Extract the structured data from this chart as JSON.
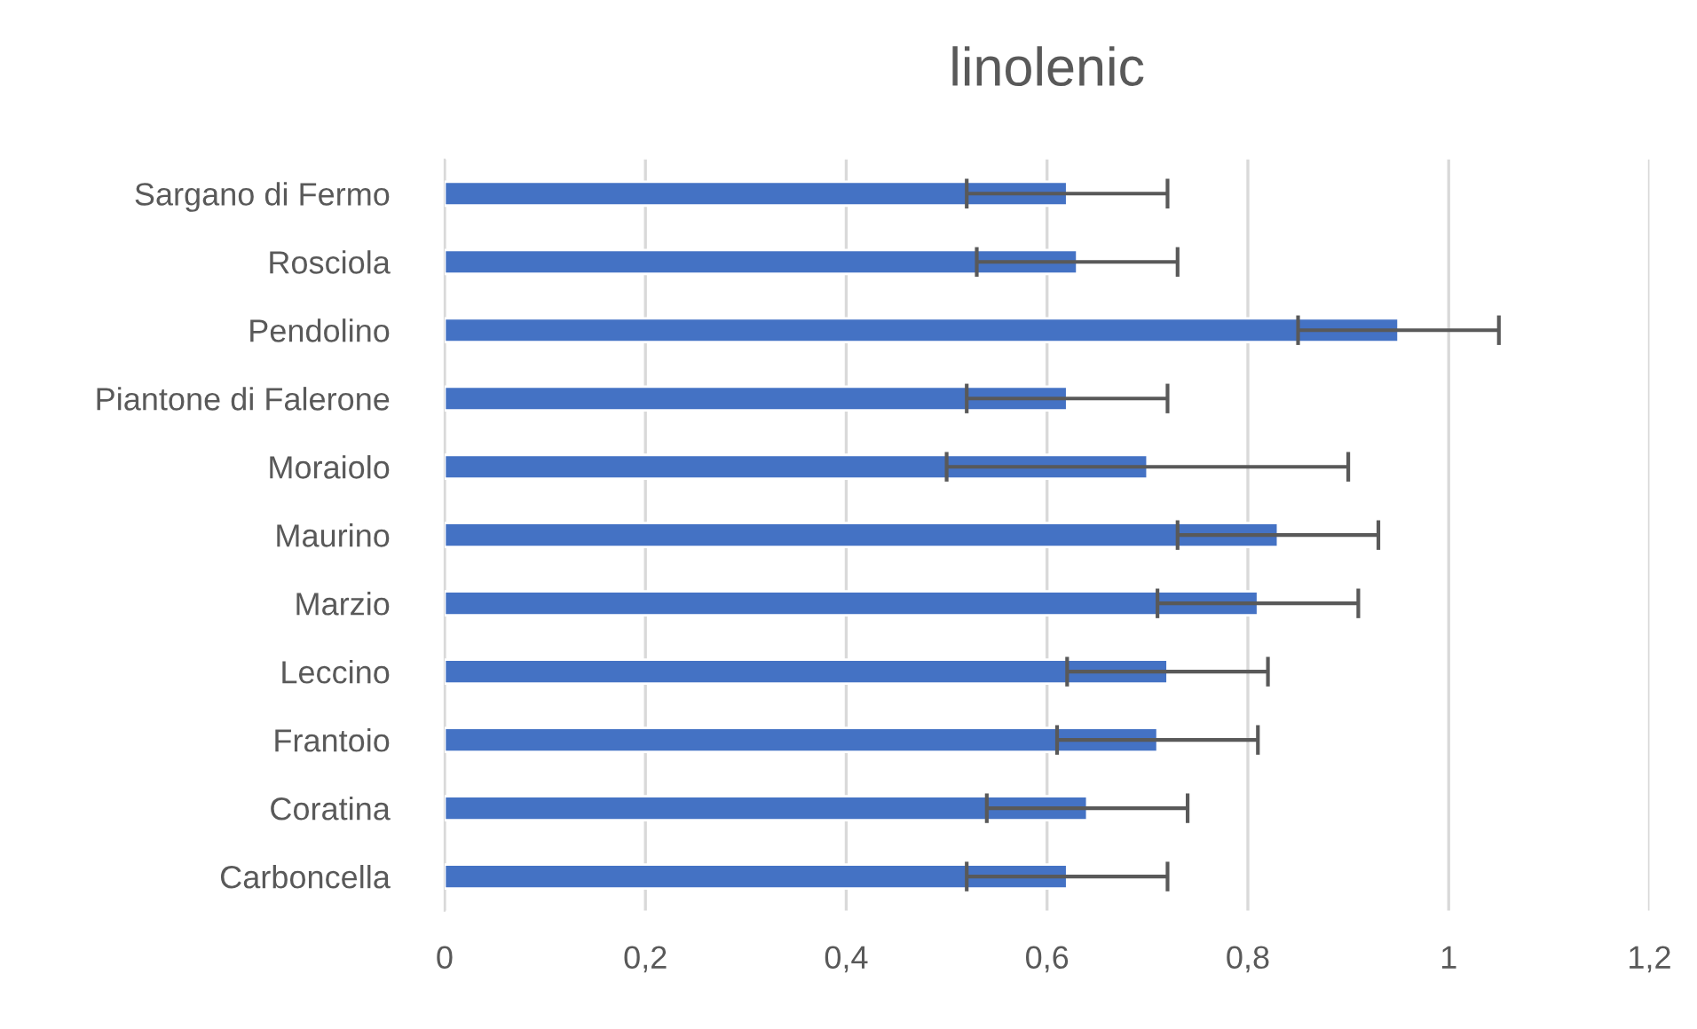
{
  "chart_data": {
    "type": "bar",
    "orientation": "horizontal",
    "title": "linolenic",
    "categories": [
      "Sargano di Fermo",
      "Rosciola",
      "Pendolino",
      "Piantone di Falerone",
      "Moraiolo",
      "Maurino",
      "Marzio",
      "Leccino",
      "Frantoio",
      "Coratina",
      "Carboncella"
    ],
    "values": [
      0.62,
      0.63,
      0.95,
      0.62,
      0.7,
      0.83,
      0.81,
      0.72,
      0.71,
      0.64,
      0.62
    ],
    "errors": [
      0.1,
      0.1,
      0.1,
      0.1,
      0.2,
      0.1,
      0.1,
      0.1,
      0.1,
      0.1,
      0.1
    ],
    "color": "#4472c4",
    "xlim": [
      0,
      1.2
    ],
    "xticks": [
      0,
      {
        "value": 0.2,
        "label": "0,2"
      },
      {
        "value": 0.4,
        "label": "0,4"
      },
      {
        "value": 0.6,
        "label": "0,6"
      },
      {
        "value": 0.8,
        "label": "0,8"
      },
      1,
      {
        "value": 1.2,
        "label": "1,2"
      }
    ],
    "grid": "x",
    "legend": false
  }
}
